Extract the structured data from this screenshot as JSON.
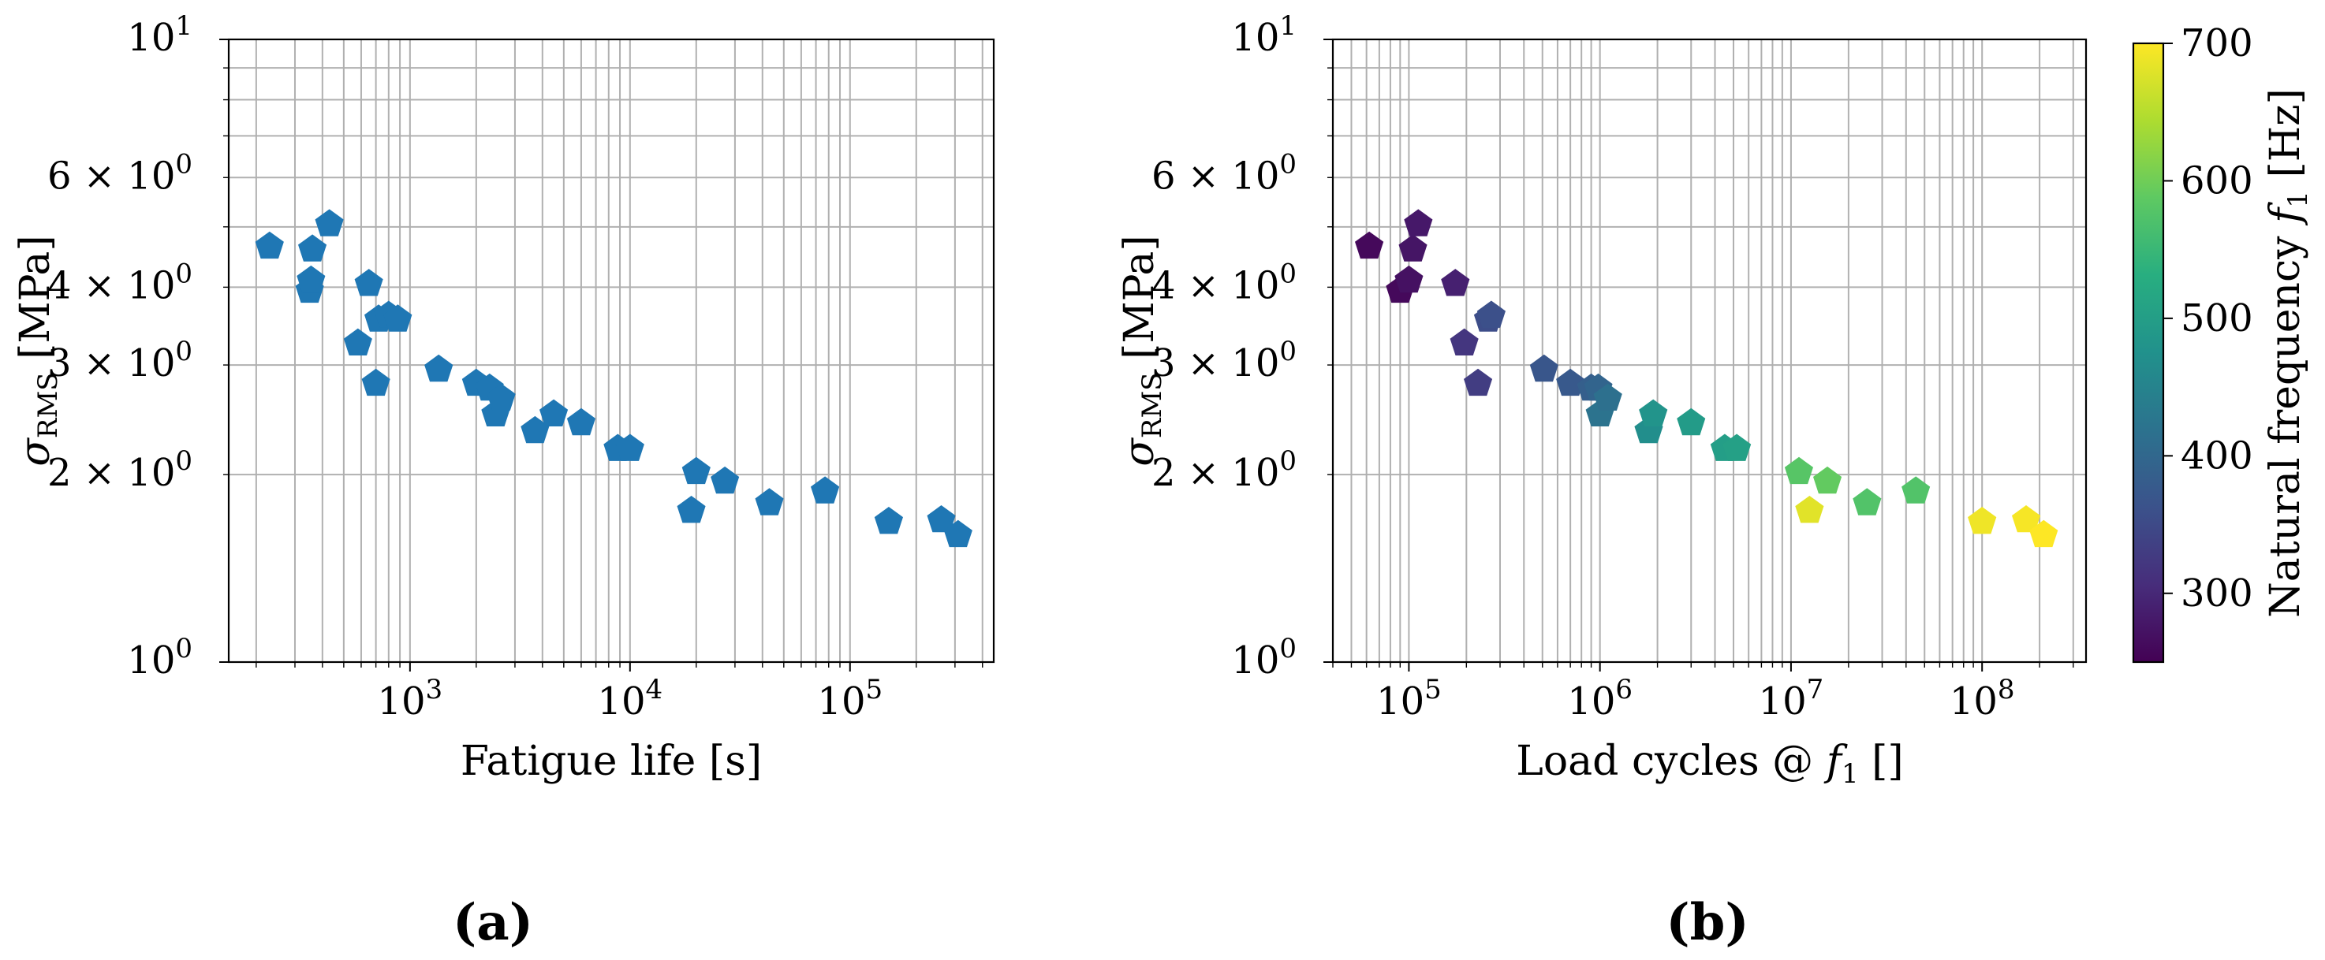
{
  "chart_data": [
    {
      "panel": "(a)",
      "type": "scatter",
      "xscale": "log",
      "yscale": "log",
      "xlabel": "Fatigue life [s]",
      "ylabel": "σRMS [MPa]",
      "ylabel_parts": {
        "symbol": "σ",
        "subscript": "RMS",
        "unit": " [MPa]"
      },
      "xlim": [
        150,
        450000
      ],
      "ylim": [
        1,
        10
      ],
      "xticks": [
        {
          "value": 1000,
          "base": "10",
          "exp": "3"
        },
        {
          "value": 10000,
          "base": "10",
          "exp": "4"
        },
        {
          "value": 100000,
          "base": "10",
          "exp": "5"
        }
      ],
      "yticks": [
        {
          "value": 1,
          "base": "10",
          "exp": "0"
        },
        {
          "value": 2,
          "base": "2 × 10",
          "exp": "0"
        },
        {
          "value": 3,
          "base": "3 × 10",
          "exp": "0"
        },
        {
          "value": 4,
          "base": "4 × 10",
          "exp": "0"
        },
        {
          "value": 6,
          "base": "6 × 10",
          "exp": "0"
        },
        {
          "value": 10,
          "base": "10",
          "exp": "1"
        }
      ],
      "marker": "pentagon",
      "color": "#1f77b4",
      "x": [
        230,
        350,
        355,
        360,
        430,
        580,
        650,
        700,
        720,
        800,
        880,
        1350,
        2000,
        2300,
        2450,
        2600,
        3700,
        4500,
        6000,
        8800,
        10000,
        19000,
        20000,
        27000,
        43000,
        77000,
        150000,
        260000,
        310000
      ],
      "y": [
        4.65,
        3.95,
        4.1,
        4.6,
        5.05,
        3.25,
        4.05,
        2.8,
        3.55,
        3.6,
        3.55,
        2.95,
        2.8,
        2.75,
        2.5,
        2.65,
        2.35,
        2.5,
        2.42,
        2.2,
        2.2,
        1.75,
        2.02,
        1.95,
        1.8,
        1.88,
        1.68,
        1.69,
        1.6
      ]
    },
    {
      "panel": "(b)",
      "type": "scatter",
      "xscale": "log",
      "yscale": "log",
      "xlabel": "Load cycles @ f1 []",
      "xlabel_parts": {
        "prefix": "Load cycles @ ",
        "symbol": "f",
        "subscript": "1",
        "suffix": " []"
      },
      "ylabel": "σRMS [MPa]",
      "ylabel_parts": {
        "symbol": "σ",
        "subscript": "RMS",
        "unit": " [MPa]"
      },
      "xlim": [
        40000,
        350000000
      ],
      "ylim": [
        1,
        10
      ],
      "xticks": [
        {
          "value": 100000,
          "base": "10",
          "exp": "5"
        },
        {
          "value": 1000000,
          "base": "10",
          "exp": "6"
        },
        {
          "value": 10000000,
          "base": "10",
          "exp": "7"
        },
        {
          "value": 100000000,
          "base": "10",
          "exp": "8"
        }
      ],
      "yticks": [
        {
          "value": 1,
          "base": "10",
          "exp": "0"
        },
        {
          "value": 2,
          "base": "2 × 10",
          "exp": "0"
        },
        {
          "value": 3,
          "base": "3 × 10",
          "exp": "0"
        },
        {
          "value": 4,
          "base": "4 × 10",
          "exp": "0"
        },
        {
          "value": 6,
          "base": "6 × 10",
          "exp": "0"
        },
        {
          "value": 10,
          "base": "10",
          "exp": "1"
        }
      ],
      "marker": "pentagon",
      "colormap": "viridis",
      "colorbar": {
        "label": "Natural frequency f1 [Hz]",
        "label_parts": {
          "prefix": "Natural frequency ",
          "symbol": "f",
          "subscript": "1",
          "suffix": " [Hz]"
        },
        "range": [
          250,
          700
        ],
        "ticks": [
          "300",
          "400",
          "500",
          "600",
          "700"
        ]
      },
      "x": [
        62000,
        90000,
        100000,
        105000,
        112000,
        175000,
        195000,
        230000,
        260000,
        270000,
        510000,
        700000,
        900000,
        980000,
        1000000,
        1100000,
        1800000,
        1900000,
        3000000,
        4500000,
        5200000,
        11000000,
        12500000,
        15500000,
        25000000,
        45000000,
        100000000,
        170000000,
        210000000
      ],
      "y": [
        4.65,
        3.95,
        4.1,
        4.6,
        5.05,
        4.05,
        3.25,
        2.8,
        3.55,
        3.6,
        2.95,
        2.8,
        2.75,
        2.75,
        2.5,
        2.65,
        2.35,
        2.5,
        2.42,
        2.2,
        2.2,
        2.02,
        1.75,
        1.95,
        1.8,
        1.88,
        1.68,
        1.69,
        1.6
      ],
      "c": [
        260,
        260,
        270,
        275,
        280,
        290,
        320,
        330,
        355,
        360,
        370,
        375,
        385,
        395,
        420,
        415,
        470,
        480,
        495,
        500,
        505,
        580,
        680,
        590,
        575,
        575,
        690,
        695,
        700
      ]
    }
  ]
}
